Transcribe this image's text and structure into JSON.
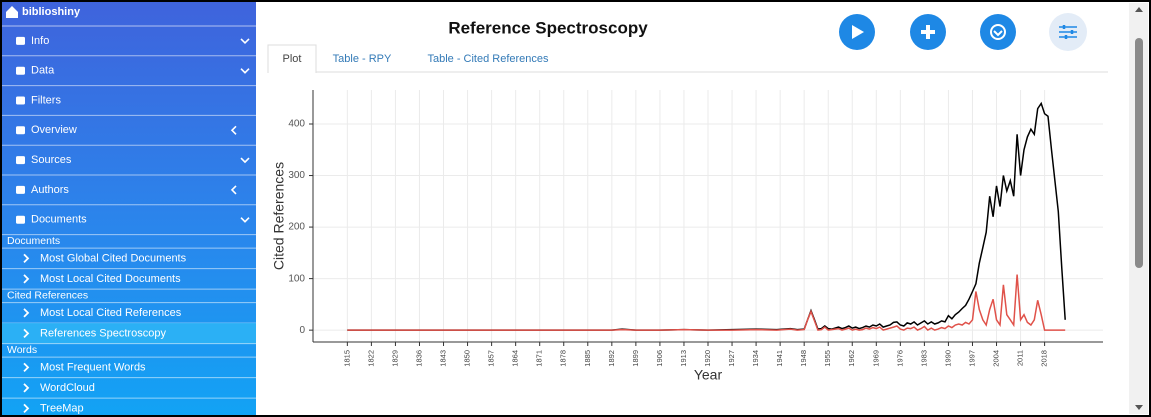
{
  "sidebar": {
    "brand": "biblioshiny",
    "items": [
      {
        "label": "Info",
        "kind": "menu",
        "arrow": "down"
      },
      {
        "label": "Data",
        "kind": "menu",
        "arrow": "down"
      },
      {
        "label": "Filters",
        "kind": "menu"
      },
      {
        "label": "Overview",
        "kind": "menu",
        "arrow": "left"
      },
      {
        "label": "Sources",
        "kind": "menu",
        "arrow": "down"
      },
      {
        "label": "Authors",
        "kind": "menu",
        "arrow": "left"
      },
      {
        "label": "Documents",
        "kind": "menu",
        "arrow": "down"
      },
      {
        "label": "Documents",
        "kind": "section"
      },
      {
        "label": "Most Global Cited Documents",
        "kind": "item"
      },
      {
        "label": "Most Local Cited Documents",
        "kind": "item"
      },
      {
        "label": "Cited References",
        "kind": "section"
      },
      {
        "label": "Most Local Cited References",
        "kind": "item"
      },
      {
        "label": "References Spectroscopy",
        "kind": "item",
        "active": true
      },
      {
        "label": "Words",
        "kind": "section"
      },
      {
        "label": "Most Frequent Words",
        "kind": "item"
      },
      {
        "label": "WordCloud",
        "kind": "item"
      },
      {
        "label": "TreeMap",
        "kind": "item"
      }
    ]
  },
  "tabs": [
    "Plot",
    "Table - RPY",
    "Table - Cited References"
  ],
  "active_tab": 0,
  "chart_data": {
    "type": "line",
    "title": "Reference Spectroscopy",
    "x_label": "Year",
    "y_label": "Cited References",
    "x": [
      1815,
      1822,
      1829,
      1836,
      1843,
      1850,
      1857,
      1864,
      1871,
      1878,
      1885,
      1892,
      1895,
      1899,
      1906,
      1913,
      1920,
      1927,
      1934,
      1940,
      1944,
      1946,
      1948,
      1949,
      1950,
      1951,
      1952,
      1953,
      1954,
      1955,
      1956,
      1957,
      1958,
      1959,
      1960,
      1961,
      1962,
      1963,
      1964,
      1965,
      1966,
      1967,
      1968,
      1969,
      1970,
      1971,
      1972,
      1973,
      1974,
      1975,
      1976,
      1977,
      1978,
      1979,
      1980,
      1981,
      1982,
      1983,
      1984,
      1985,
      1986,
      1987,
      1988,
      1989,
      1990,
      1991,
      1992,
      1993,
      1994,
      1995,
      1996,
      1997,
      1998,
      1999,
      2000,
      2001,
      2002,
      2003,
      2004,
      2005,
      2006,
      2007,
      2008,
      2009,
      2010,
      2011,
      2012,
      2013,
      2014,
      2015,
      2016,
      2017,
      2018,
      2019,
      2020,
      2021,
      2022,
      2023,
      2024
    ],
    "series": [
      {
        "color": "#000000",
        "values": [
          0,
          0,
          0,
          0,
          0,
          0,
          0,
          0,
          0,
          0,
          0,
          0,
          2,
          0,
          0,
          1,
          0,
          1,
          2,
          1,
          3,
          1,
          2,
          20,
          38,
          20,
          2,
          3,
          8,
          3,
          2,
          4,
          6,
          3,
          5,
          8,
          4,
          6,
          3,
          5,
          8,
          6,
          10,
          8,
          12,
          6,
          8,
          10,
          15,
          16,
          10,
          8,
          14,
          12,
          16,
          10,
          14,
          18,
          12,
          16,
          12,
          14,
          18,
          16,
          28,
          22,
          30,
          35,
          42,
          48,
          60,
          75,
          90,
          130,
          160,
          190,
          260,
          220,
          280,
          240,
          300,
          270,
          290,
          260,
          380,
          300,
          350,
          375,
          390,
          380,
          430,
          440,
          420,
          415,
          350,
          290,
          230,
          120,
          20
        ]
      },
      {
        "color": "#e0524a",
        "values": [
          0,
          0,
          0,
          0,
          0,
          0,
          0,
          0,
          0,
          0,
          0,
          0,
          1,
          0,
          0,
          1,
          0,
          0,
          1,
          0,
          2,
          0,
          1,
          20,
          36,
          18,
          0,
          1,
          6,
          0,
          1,
          2,
          3,
          0,
          2,
          4,
          0,
          2,
          0,
          1,
          4,
          2,
          5,
          3,
          6,
          0,
          2,
          4,
          6,
          8,
          2,
          0,
          4,
          3,
          6,
          0,
          3,
          7,
          0,
          4,
          0,
          2,
          5,
          3,
          8,
          5,
          10,
          12,
          10,
          15,
          12,
          20,
          75,
          40,
          20,
          10,
          40,
          60,
          20,
          10,
          88,
          30,
          20,
          10,
          108,
          20,
          30,
          15,
          10,
          20,
          58,
          30,
          0,
          0,
          0,
          0,
          0,
          0,
          0
        ]
      }
    ],
    "xlim": [
      1805,
      2035
    ],
    "ylim": [
      -23,
      466
    ],
    "xticks": [
      1815,
      1822,
      1829,
      1836,
      1843,
      1850,
      1857,
      1864,
      1871,
      1878,
      1885,
      1892,
      1899,
      1906,
      1913,
      1920,
      1927,
      1934,
      1941,
      1948,
      1955,
      1962,
      1969,
      1976,
      1983,
      1990,
      1997,
      2004,
      2011,
      2018
    ],
    "yticks": [
      0,
      100,
      200,
      300,
      400
    ],
    "grid": true
  }
}
